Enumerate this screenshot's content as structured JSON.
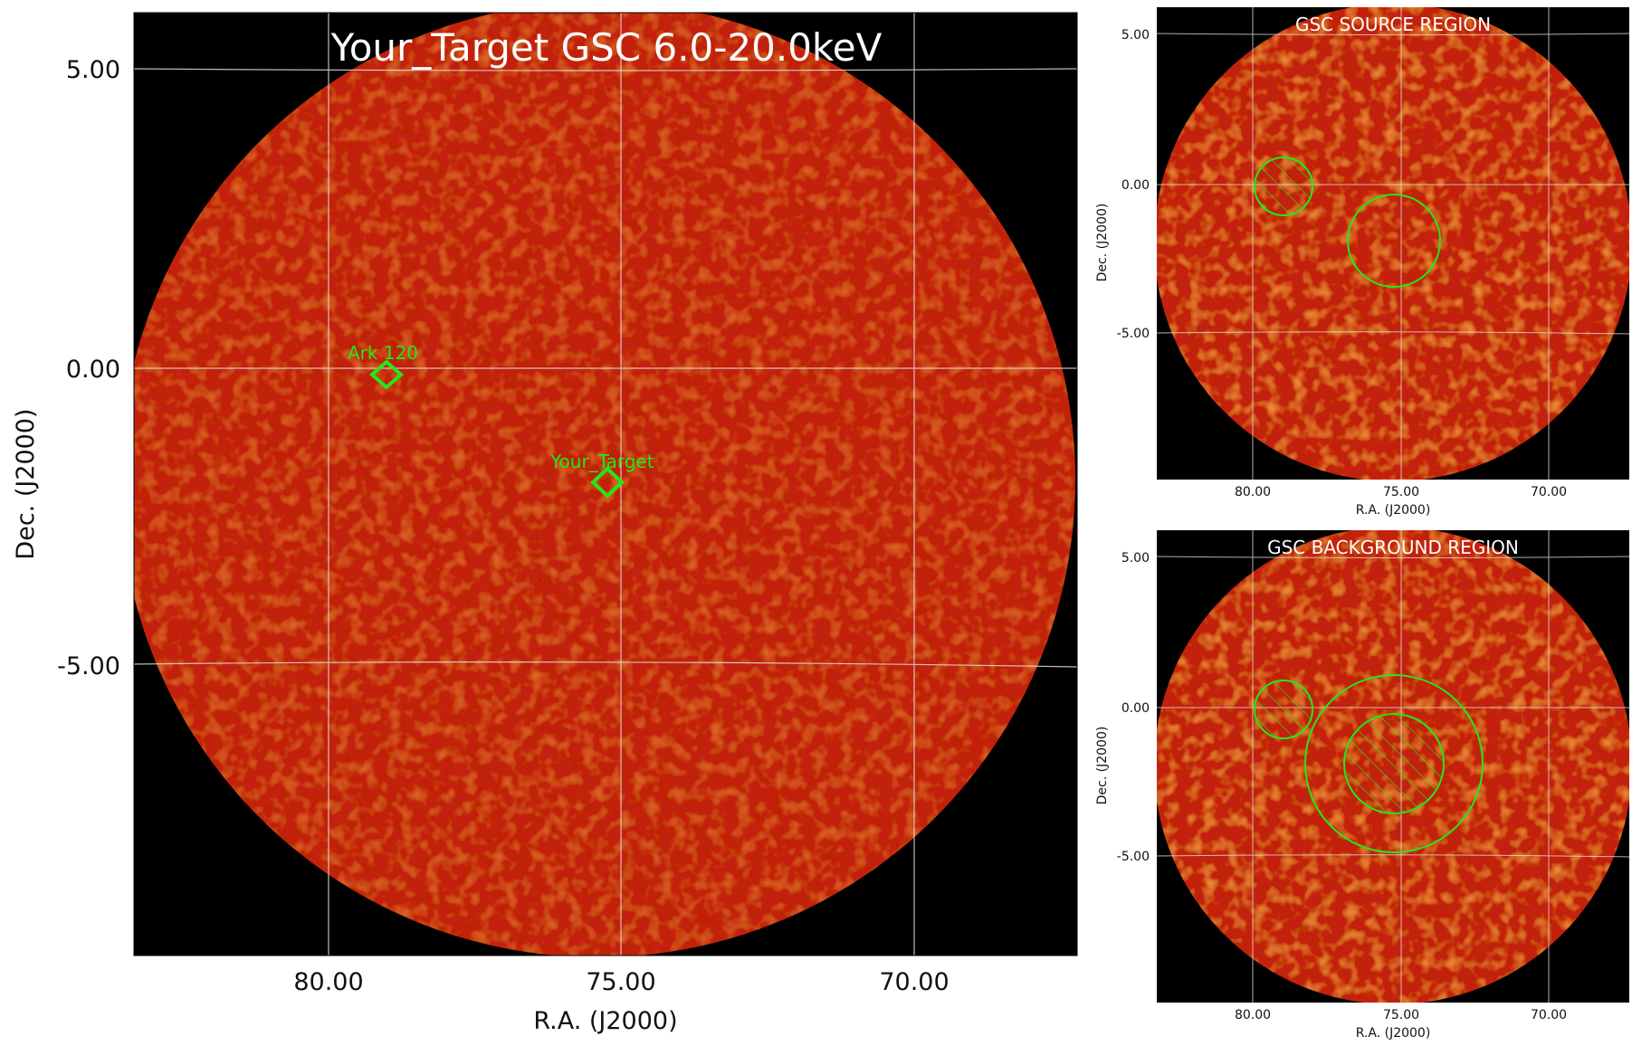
{
  "main_panel": {
    "title": "Your_Target GSC 6.0-20.0keV",
    "xlabel": "R.A. (J2000)",
    "ylabel": "Dec. (J2000)",
    "x_ticks": [
      "80.00",
      "75.00",
      "70.00"
    ],
    "y_ticks": [
      "5.00",
      "0.00",
      "-5.00"
    ],
    "markers": [
      {
        "label": "Ark 120"
      },
      {
        "label": "Your_Target"
      }
    ]
  },
  "source_panel": {
    "title": "GSC SOURCE REGION",
    "xlabel": "R.A. (J2000)",
    "ylabel": "Dec. (J2000)",
    "x_ticks": [
      "80.00",
      "75.00",
      "70.00"
    ],
    "y_ticks": [
      "5.00",
      "0.00",
      "-5.00"
    ]
  },
  "background_panel": {
    "title": "GSC BACKGROUND REGION",
    "xlabel": "R.A. (J2000)",
    "ylabel": "Dec. (J2000)",
    "x_ticks": [
      "80.00",
      "75.00",
      "70.00"
    ],
    "y_ticks": [
      "5.00",
      "0.00",
      "-5.00"
    ]
  },
  "colors": {
    "background": "#000000",
    "map_fill": "#c2200c",
    "marker": "#22e81a",
    "grid": "#dddddd"
  }
}
